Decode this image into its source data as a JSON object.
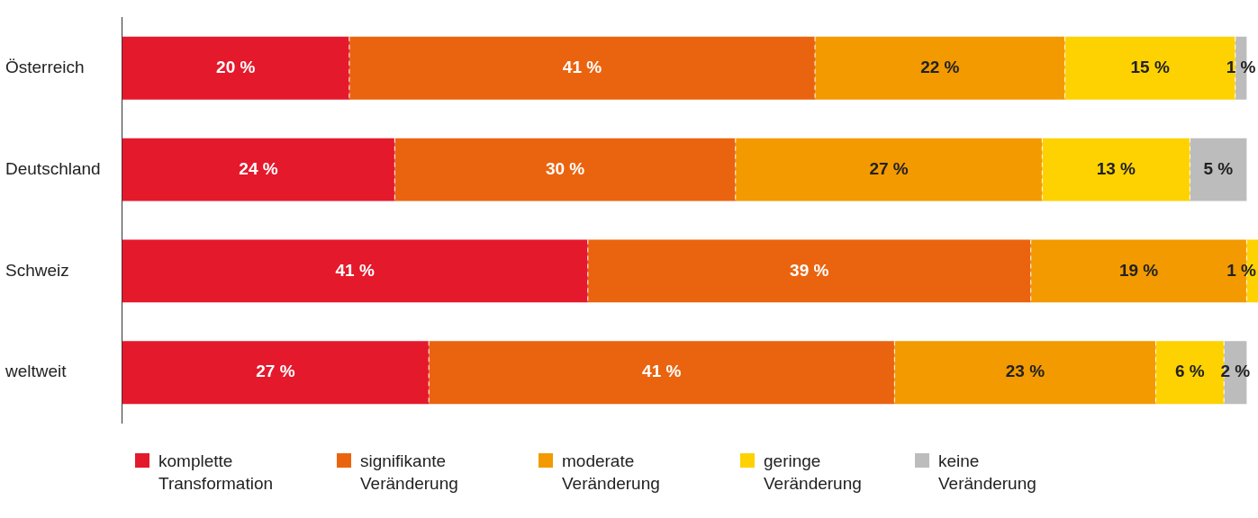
{
  "chart_data": {
    "type": "bar",
    "orientation": "horizontal",
    "stacked": true,
    "categories": [
      "Österreich",
      "Deutschland",
      "Schweiz",
      "weltweit"
    ],
    "series": [
      {
        "name": "komplette Transformation",
        "color": "#e4192c",
        "values": [
          20,
          24,
          41,
          27
        ],
        "value_labels": [
          "20 %",
          "24 %",
          "41 %",
          "27 %"
        ]
      },
      {
        "name": "signifikante Veränderung",
        "color": "#ea640f",
        "values": [
          41,
          30,
          39,
          41
        ],
        "value_labels": [
          "41 %",
          "30 %",
          "39 %",
          "41 %"
        ]
      },
      {
        "name": "moderate Veränderung",
        "color": "#f39a00",
        "values": [
          22,
          27,
          19,
          23
        ],
        "value_labels": [
          "22 %",
          "27 %",
          "19 %",
          "23 %"
        ]
      },
      {
        "name": "geringe Veränderung",
        "color": "#fdd200",
        "values": [
          15,
          13,
          1,
          6
        ],
        "value_labels": [
          "15 %",
          "13 %",
          "1 %",
          "6 %"
        ]
      },
      {
        "name": "keine Veränderung",
        "color": "#bcbcbc",
        "values": [
          1,
          5,
          null,
          2
        ],
        "value_labels": [
          "1 %",
          "5 %",
          null,
          "2 %"
        ]
      }
    ],
    "xlim": [
      0,
      100
    ],
    "tick_labels": "y",
    "legend": "bottom left"
  }
}
